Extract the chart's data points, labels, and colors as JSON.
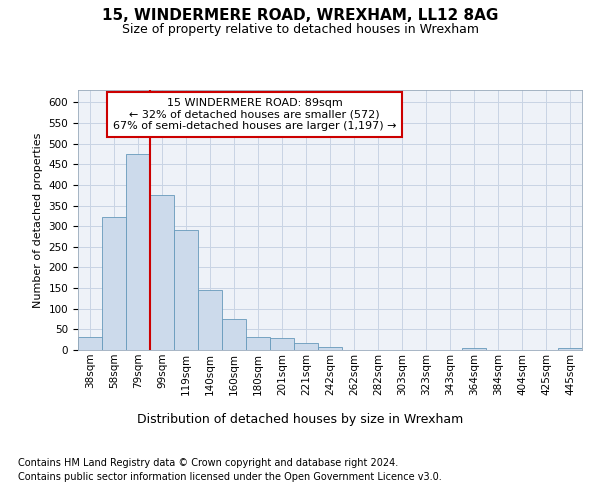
{
  "title1": "15, WINDERMERE ROAD, WREXHAM, LL12 8AG",
  "title2": "Size of property relative to detached houses in Wrexham",
  "xlabel": "Distribution of detached houses by size in Wrexham",
  "ylabel": "Number of detached properties",
  "footnote1": "Contains HM Land Registry data © Crown copyright and database right 2024.",
  "footnote2": "Contains public sector information licensed under the Open Government Licence v3.0.",
  "annotation_line1": "15 WINDERMERE ROAD: 89sqm",
  "annotation_line2": "← 32% of detached houses are smaller (572)",
  "annotation_line3": "67% of semi-detached houses are larger (1,197) →",
  "bar_color": "#ccdaeb",
  "bar_edge_color": "#6699bb",
  "grid_color": "#c8d4e4",
  "bg_color": "#eef2f8",
  "marker_line_color": "#cc0000",
  "annotation_box_color": "#cc0000",
  "bin_labels": [
    "38sqm",
    "58sqm",
    "79sqm",
    "99sqm",
    "119sqm",
    "140sqm",
    "160sqm",
    "180sqm",
    "201sqm",
    "221sqm",
    "242sqm",
    "262sqm",
    "282sqm",
    "303sqm",
    "323sqm",
    "343sqm",
    "364sqm",
    "384sqm",
    "404sqm",
    "425sqm",
    "445sqm"
  ],
  "counts": [
    32,
    322,
    475,
    375,
    290,
    145,
    75,
    32,
    30,
    17,
    8,
    0,
    0,
    0,
    0,
    0,
    5,
    0,
    0,
    0,
    5
  ],
  "ylim": [
    0,
    630
  ],
  "yticks": [
    0,
    50,
    100,
    150,
    200,
    250,
    300,
    350,
    400,
    450,
    500,
    550,
    600
  ],
  "property_bar_index": 2,
  "title1_fontsize": 11,
  "title2_fontsize": 9,
  "ylabel_fontsize": 8,
  "xlabel_fontsize": 9,
  "footnote_fontsize": 7,
  "tick_fontsize": 7.5,
  "annotation_fontsize": 8
}
